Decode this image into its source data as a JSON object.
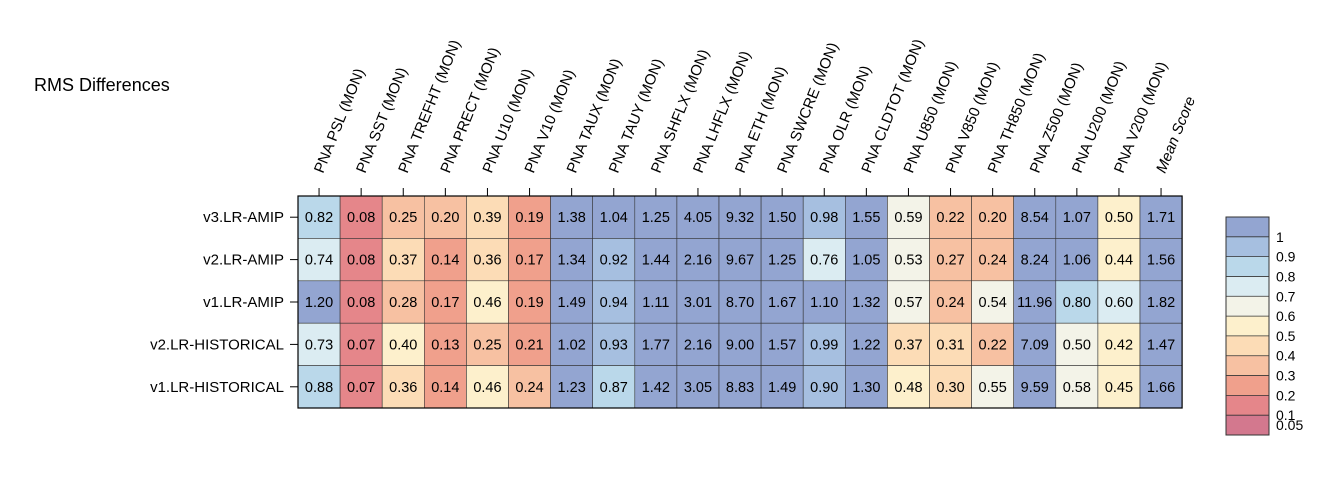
{
  "chart_data": {
    "type": "heatmap",
    "title": "RMS Differences",
    "columns": [
      "PNA PSL (MON)",
      "PNA SST (MON)",
      "PNA TREFHT (MON)",
      "PNA PRECT (MON)",
      "PNA U10 (MON)",
      "PNA V10 (MON)",
      "PNA TAUX (MON)",
      "PNA TAUY (MON)",
      "PNA SHFLX (MON)",
      "PNA LHFLX (MON)",
      "PNA ETH (MON)",
      "PNA SWCRE (MON)",
      "PNA OLR (MON)",
      "PNA CLDTOT (MON)",
      "PNA U850 (MON)",
      "PNA V850 (MON)",
      "PNA TH850 (MON)",
      "PNA Z500 (MON)",
      "PNA U200 (MON)",
      "PNA V200 (MON)",
      "Mean Score"
    ],
    "rows": [
      "v3.LR-AMIP",
      "v2.LR-AMIP",
      "v1.LR-AMIP",
      "v2.LR-HISTORICAL",
      "v1.LR-HISTORICAL"
    ],
    "values": [
      [
        "0.82",
        "0.08",
        "0.25",
        "0.20",
        "0.39",
        "0.19",
        "1.38",
        "1.04",
        "1.25",
        "4.05",
        "9.32",
        "1.50",
        "0.98",
        "1.55",
        "0.59",
        "0.22",
        "0.20",
        "8.54",
        "1.07",
        "0.50",
        "1.71"
      ],
      [
        "0.74",
        "0.08",
        "0.37",
        "0.14",
        "0.36",
        "0.17",
        "1.34",
        "0.92",
        "1.44",
        "2.16",
        "9.67",
        "1.25",
        "0.76",
        "1.05",
        "0.53",
        "0.27",
        "0.24",
        "8.24",
        "1.06",
        "0.44",
        "1.56"
      ],
      [
        "1.20",
        "0.08",
        "0.28",
        "0.17",
        "0.46",
        "0.19",
        "1.49",
        "0.94",
        "1.11",
        "3.01",
        "8.70",
        "1.67",
        "1.10",
        "1.32",
        "0.57",
        "0.24",
        "0.54",
        "11.96",
        "0.80",
        "0.60",
        "1.82"
      ],
      [
        "0.73",
        "0.07",
        "0.40",
        "0.13",
        "0.25",
        "0.21",
        "1.02",
        "0.93",
        "1.77",
        "2.16",
        "9.00",
        "1.57",
        "0.99",
        "1.22",
        "0.37",
        "0.31",
        "0.22",
        "7.09",
        "0.50",
        "0.42",
        "1.47"
      ],
      [
        "0.88",
        "0.07",
        "0.36",
        "0.14",
        "0.46",
        "0.24",
        "1.23",
        "0.87",
        "1.42",
        "3.05",
        "8.83",
        "1.49",
        "0.90",
        "1.30",
        "0.48",
        "0.30",
        "0.55",
        "9.59",
        "0.58",
        "0.45",
        "1.66"
      ]
    ],
    "colorbar": {
      "ticks": [
        "1",
        "0.9",
        "0.8",
        "0.7",
        "0.6",
        "0.5",
        "0.4",
        "0.3",
        "0.2",
        "0.1",
        "0.05"
      ],
      "colors": [
        "#93a5d1",
        "#a6bfe0",
        "#bad8ea",
        "#dbecf2",
        "#f3f3e8",
        "#fdf0cc",
        "#fcdcb6",
        "#f7c1a2",
        "#f0a08c",
        "#e5868a",
        "#d3788e"
      ]
    },
    "cell_colors": [
      [
        "#bad8ea",
        "#e5868a",
        "#f7c1a2",
        "#f7c1a2",
        "#fcdcb6",
        "#f0a08c",
        "#93a5d1",
        "#93a5d1",
        "#93a5d1",
        "#93a5d1",
        "#93a5d1",
        "#93a5d1",
        "#a6bfe0",
        "#93a5d1",
        "#f3f3e8",
        "#f7c1a2",
        "#f7c1a2",
        "#93a5d1",
        "#93a5d1",
        "#fdf0cc",
        "#93a5d1"
      ],
      [
        "#dbecf2",
        "#e5868a",
        "#fcdcb6",
        "#f0a08c",
        "#fcdcb6",
        "#f0a08c",
        "#93a5d1",
        "#a6bfe0",
        "#93a5d1",
        "#93a5d1",
        "#93a5d1",
        "#93a5d1",
        "#dbecf2",
        "#93a5d1",
        "#f3f3e8",
        "#f7c1a2",
        "#f7c1a2",
        "#93a5d1",
        "#93a5d1",
        "#fdf0cc",
        "#93a5d1"
      ],
      [
        "#93a5d1",
        "#e5868a",
        "#f7c1a2",
        "#f0a08c",
        "#fdf0cc",
        "#f0a08c",
        "#93a5d1",
        "#a6bfe0",
        "#93a5d1",
        "#93a5d1",
        "#93a5d1",
        "#93a5d1",
        "#93a5d1",
        "#93a5d1",
        "#f3f3e8",
        "#f7c1a2",
        "#f3f3e8",
        "#93a5d1",
        "#bad8ea",
        "#dbecf2",
        "#93a5d1"
      ],
      [
        "#dbecf2",
        "#e5868a",
        "#fdf0cc",
        "#f0a08c",
        "#f7c1a2",
        "#f0a08c",
        "#93a5d1",
        "#a6bfe0",
        "#93a5d1",
        "#93a5d1",
        "#93a5d1",
        "#93a5d1",
        "#a6bfe0",
        "#93a5d1",
        "#fcdcb6",
        "#fcdcb6",
        "#f7c1a2",
        "#93a5d1",
        "#f3f3e8",
        "#fdf0cc",
        "#93a5d1"
      ],
      [
        "#bad8ea",
        "#e5868a",
        "#fcdcb6",
        "#f0a08c",
        "#fdf0cc",
        "#f7c1a2",
        "#93a5d1",
        "#bad8ea",
        "#93a5d1",
        "#93a5d1",
        "#93a5d1",
        "#93a5d1",
        "#a6bfe0",
        "#93a5d1",
        "#fdf0cc",
        "#fcdcb6",
        "#f3f3e8",
        "#93a5d1",
        "#f3f3e8",
        "#fdf0cc",
        "#93a5d1"
      ]
    ]
  }
}
